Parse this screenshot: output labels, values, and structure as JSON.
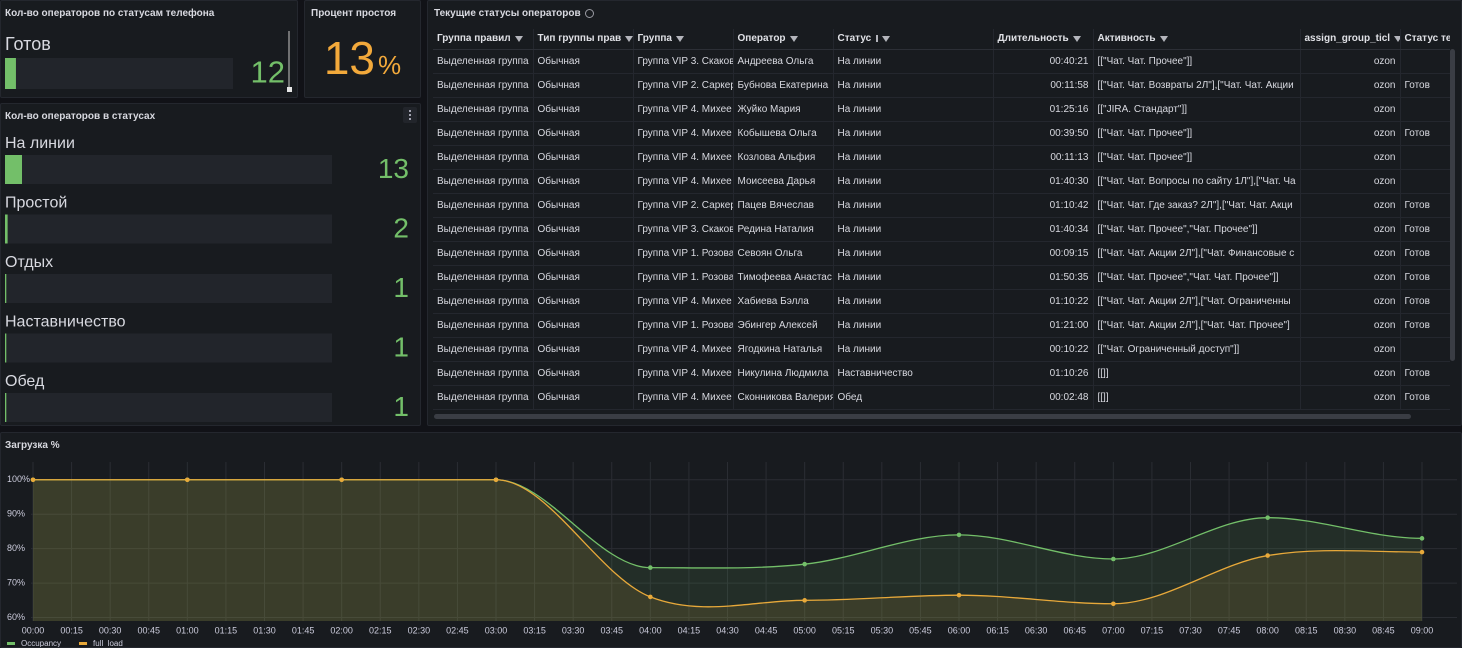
{
  "panels": {
    "phone_status": {
      "title": "Кол-во операторов по статусам телефона",
      "type": "bargauge",
      "xlim": [
        0,
        250
      ],
      "color": "#73bf69",
      "categories": [
        "Готов"
      ],
      "values": [
        12
      ]
    },
    "idle_percent": {
      "title": "Процент простоя",
      "value": 13,
      "unit": "%",
      "color": "#f2a93b"
    },
    "status_counts": {
      "title": "Кол-во операторов в статусах",
      "type": "bargauge",
      "xlim": [
        0,
        250
      ],
      "color": "#73bf69",
      "categories": [
        "На линии",
        "Простой",
        "Отдых",
        "Наставничество",
        "Обед"
      ],
      "values": [
        13,
        2,
        1,
        1,
        1
      ]
    },
    "table": {
      "title": "Текущие статусы операторов",
      "columns": [
        "Группа правил",
        "Тип группы прав",
        "Группа",
        "Оператор",
        "Статус",
        "Длительность",
        "Активность",
        "assign_group_ticl",
        "Статус теле"
      ],
      "rows": [
        [
          "Выделенная группа",
          "Обычная",
          "Группа VIP 3. Скаков",
          "Андреева Ольга",
          "На линии",
          "00:40:21",
          "[[\"Чат. Чат. Прочее\"]]",
          "ozon",
          null
        ],
        [
          "Выделенная группа",
          "Обычная",
          "Группа VIP 2. Саркер",
          "Бубнова Екатерина",
          "На линии",
          "00:11:58",
          "[[\"Чат. Чат. Возвраты 2Л\"],[\"Чат. Чат. Акции",
          "ozon",
          "Готов"
        ],
        [
          "Выделенная группа",
          "Обычная",
          "Группа VIP 4. Михее",
          "Жуйко Мария",
          "На линии",
          "01:25:16",
          "[[\"JIRA. Стандарт\"]]",
          "ozon",
          null
        ],
        [
          "Выделенная группа",
          "Обычная",
          "Группа VIP 4. Михее",
          "Кобышева Ольга",
          "На линии",
          "00:39:50",
          "[[\"Чат. Чат. Прочее\"]]",
          "ozon",
          "Готов"
        ],
        [
          "Выделенная группа",
          "Обычная",
          "Группа VIP 4. Михее",
          "Козлова Альфия",
          "На линии",
          "00:11:13",
          "[[\"Чат. Чат. Прочее\"]]",
          "ozon",
          null
        ],
        [
          "Выделенная группа",
          "Обычная",
          "Группа VIP 4. Михее",
          "Моисеева Дарья",
          "На линии",
          "01:40:30",
          "[[\"Чат. Чат. Вопросы по сайту 1Л\"],[\"Чат. Ча",
          "ozon",
          null
        ],
        [
          "Выделенная группа",
          "Обычная",
          "Группа VIP 2. Саркер",
          "Пацев Вячеслав",
          "На линии",
          "01:10:42",
          "[[\"Чат. Чат. Где заказ? 2Л\"],[\"Чат. Чат. Акци",
          "ozon",
          "Готов"
        ],
        [
          "Выделенная группа",
          "Обычная",
          "Группа VIP 3. Скаков",
          "Редина Наталия",
          "На линии",
          "01:40:34",
          "[[\"Чат. Чат. Прочее\",\"Чат. Прочее\"]]",
          "ozon",
          "Готов"
        ],
        [
          "Выделенная группа",
          "Обычная",
          "Группа VIP 1. Розова",
          "Севоян Ольга",
          "На линии",
          "00:09:15",
          "[[\"Чат. Чат. Акции 2Л\"],[\"Чат. Финансовые с",
          "ozon",
          "Готов"
        ],
        [
          "Выделенная группа",
          "Обычная",
          "Группа VIP 1. Розова",
          "Тимофеева Анастас",
          "На линии",
          "01:50:35",
          "[[\"Чат. Чат. Прочее\",\"Чат. Чат. Прочее\"]]",
          "ozon",
          "Готов"
        ],
        [
          "Выделенная группа",
          "Обычная",
          "Группа VIP 4. Михее",
          "Хабиева Бэлла",
          "На линии",
          "01:10:22",
          "[[\"Чат. Чат. Акции 2Л\"],[\"Чат. Ограниченны",
          "ozon",
          "Готов"
        ],
        [
          "Выделенная группа",
          "Обычная",
          "Группа VIP 1. Розова",
          "Эбингер Алексей",
          "На линии",
          "01:21:00",
          "[[\"Чат. Чат. Акции 2Л\"],[\"Чат. Чат. Прочее\"]",
          "ozon",
          "Готов"
        ],
        [
          "Выделенная группа",
          "Обычная",
          "Группа VIP 4. Михее",
          "Ягодкина Наталья",
          "На линии",
          "00:10:22",
          "[[\"Чат. Ограниченный доступ\"]]",
          "ozon",
          null
        ],
        [
          "Выделенная группа",
          "Обычная",
          "Группа VIP 4. Михее",
          "Никулина Людмила",
          "Наставничество",
          "01:10:26",
          "[[]]",
          "ozon",
          "Готов"
        ],
        [
          "Выделенная группа",
          "Обычная",
          "Группа VIP 4. Михее",
          "Сконникова Валерия",
          "Обед",
          "00:02:48",
          "[[]]",
          "ozon",
          "Готов"
        ]
      ]
    }
  },
  "chart_data": {
    "type": "line",
    "title": "Загрузка %",
    "x": [
      0,
      60,
      120,
      180,
      240,
      300,
      360,
      420,
      480,
      540
    ],
    "xlim": [
      0,
      540
    ],
    "xticks": [
      {
        "value": 0,
        "label": "00:00"
      },
      {
        "value": 15,
        "label": "00:15"
      },
      {
        "value": 30,
        "label": "00:30"
      },
      {
        "value": 45,
        "label": "00:45"
      },
      {
        "value": 60,
        "label": "01:00"
      },
      {
        "value": 75,
        "label": "01:15"
      },
      {
        "value": 90,
        "label": "01:30"
      },
      {
        "value": 105,
        "label": "01:45"
      },
      {
        "value": 120,
        "label": "02:00"
      },
      {
        "value": 135,
        "label": "02:15"
      },
      {
        "value": 150,
        "label": "02:30"
      },
      {
        "value": 165,
        "label": "02:45"
      },
      {
        "value": 180,
        "label": "03:00"
      },
      {
        "value": 195,
        "label": "03:15"
      },
      {
        "value": 210,
        "label": "03:30"
      },
      {
        "value": 225,
        "label": "03:45"
      },
      {
        "value": 240,
        "label": "04:00"
      },
      {
        "value": 255,
        "label": "04:15"
      },
      {
        "value": 270,
        "label": "04:30"
      },
      {
        "value": 285,
        "label": "04:45"
      },
      {
        "value": 300,
        "label": "05:00"
      },
      {
        "value": 315,
        "label": "05:15"
      },
      {
        "value": 330,
        "label": "05:30"
      },
      {
        "value": 345,
        "label": "05:45"
      },
      {
        "value": 360,
        "label": "06:00"
      },
      {
        "value": 375,
        "label": "06:15"
      },
      {
        "value": 390,
        "label": "06:30"
      },
      {
        "value": 405,
        "label": "06:45"
      },
      {
        "value": 420,
        "label": "07:00"
      },
      {
        "value": 435,
        "label": "07:15"
      },
      {
        "value": 450,
        "label": "07:30"
      },
      {
        "value": 465,
        "label": "07:45"
      },
      {
        "value": 480,
        "label": "08:00"
      },
      {
        "value": 495,
        "label": "08:15"
      },
      {
        "value": 510,
        "label": "08:30"
      },
      {
        "value": 525,
        "label": "08:45"
      },
      {
        "value": 540,
        "label": "09:00"
      }
    ],
    "ylim": [
      59,
      104
    ],
    "yticks": [
      {
        "value": 60,
        "label": "60%"
      },
      {
        "value": 70,
        "label": "70%"
      },
      {
        "value": 80,
        "label": "80%"
      },
      {
        "value": 90,
        "label": "90%"
      },
      {
        "value": 100,
        "label": "100%"
      }
    ],
    "grid": true,
    "legend": "bottom-left",
    "series": [
      {
        "name": "Occupancy",
        "color": "#73bf69",
        "values": [
          100,
          100,
          100,
          100,
          74.5,
          75.5,
          84,
          77,
          89,
          83
        ]
      },
      {
        "name": "full_load",
        "color": "#e8a93a",
        "values": [
          100,
          100,
          100,
          100,
          66,
          65,
          66.5,
          64,
          78,
          79
        ]
      }
    ]
  }
}
